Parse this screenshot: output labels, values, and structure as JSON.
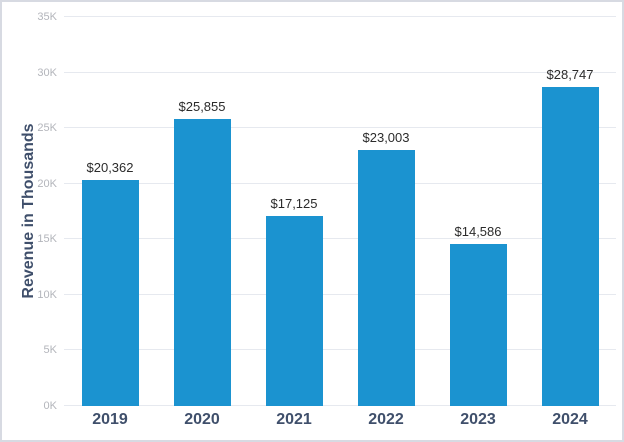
{
  "chart_data": {
    "type": "bar",
    "categories": [
      "2019",
      "2020",
      "2021",
      "2022",
      "2023",
      "2024"
    ],
    "values": [
      20362,
      25855,
      17125,
      23003,
      14586,
      28747
    ],
    "value_labels": [
      "$20,362",
      "$25,855",
      "$17,125",
      "$23,003",
      "$14,586",
      "$28,747"
    ],
    "title": "",
    "xlabel": "",
    "ylabel": "Revenue in Thousands",
    "ylim": [
      0,
      35000
    ],
    "ytick_step": 5000,
    "ytick_labels": [
      "0K",
      "5K",
      "10K",
      "15K",
      "20K",
      "25K",
      "30K",
      "35K"
    ],
    "grid": true,
    "legend": false,
    "bar_color": "#1b93d0",
    "gridline_color": "#e6e9ef",
    "tick_label_color": "#b3b5bb",
    "category_label_color": "#3f4f6b",
    "value_label_color": "#2b2b2b"
  }
}
